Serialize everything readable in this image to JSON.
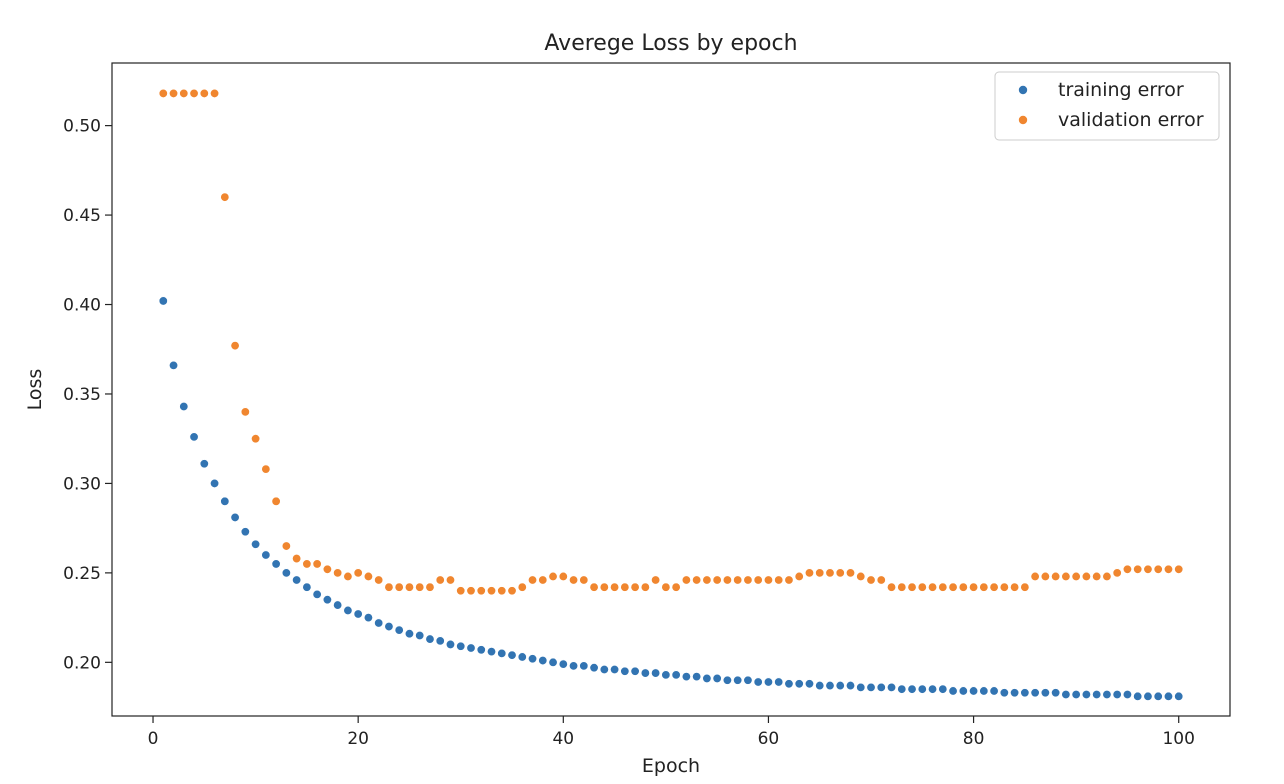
{
  "chart_data": {
    "type": "scatter",
    "title": "Averege Loss by epoch",
    "xlabel": "Epoch",
    "ylabel": "Loss",
    "xlim": [
      -4,
      105
    ],
    "ylim": [
      0.17,
      0.535
    ],
    "xticks": [
      0,
      20,
      40,
      60,
      80,
      100
    ],
    "yticks": [
      0.2,
      0.25,
      0.3,
      0.35,
      0.4,
      0.45,
      0.5
    ],
    "xtick_labels": [
      "0",
      "20",
      "40",
      "60",
      "80",
      "100"
    ],
    "ytick_labels": [
      "0.20",
      "0.25",
      "0.30",
      "0.35",
      "0.40",
      "0.45",
      "0.50"
    ],
    "grid": false,
    "legend_position": "top-right",
    "series": [
      {
        "name": "training error",
        "color": "#3274b2",
        "x": [
          1,
          2,
          3,
          4,
          5,
          6,
          7,
          8,
          9,
          10,
          11,
          12,
          13,
          14,
          15,
          16,
          17,
          18,
          19,
          20,
          21,
          22,
          23,
          24,
          25,
          26,
          27,
          28,
          29,
          30,
          31,
          32,
          33,
          34,
          35,
          36,
          37,
          38,
          39,
          40,
          41,
          42,
          43,
          44,
          45,
          46,
          47,
          48,
          49,
          50,
          51,
          52,
          53,
          54,
          55,
          56,
          57,
          58,
          59,
          60,
          61,
          62,
          63,
          64,
          65,
          66,
          67,
          68,
          69,
          70,
          71,
          72,
          73,
          74,
          75,
          76,
          77,
          78,
          79,
          80,
          81,
          82,
          83,
          84,
          85,
          86,
          87,
          88,
          89,
          90,
          91,
          92,
          93,
          94,
          95,
          96,
          97,
          98,
          99,
          100
        ],
        "y": [
          0.402,
          0.366,
          0.343,
          0.326,
          0.311,
          0.3,
          0.29,
          0.281,
          0.273,
          0.266,
          0.26,
          0.255,
          0.25,
          0.246,
          0.242,
          0.238,
          0.235,
          0.232,
          0.229,
          0.227,
          0.225,
          0.222,
          0.22,
          0.218,
          0.216,
          0.215,
          0.213,
          0.212,
          0.21,
          0.209,
          0.208,
          0.207,
          0.206,
          0.205,
          0.204,
          0.203,
          0.202,
          0.201,
          0.2,
          0.199,
          0.198,
          0.198,
          0.197,
          0.196,
          0.196,
          0.195,
          0.195,
          0.194,
          0.194,
          0.193,
          0.193,
          0.192,
          0.192,
          0.191,
          0.191,
          0.19,
          0.19,
          0.19,
          0.189,
          0.189,
          0.189,
          0.188,
          0.188,
          0.188,
          0.187,
          0.187,
          0.187,
          0.187,
          0.186,
          0.186,
          0.186,
          0.186,
          0.185,
          0.185,
          0.185,
          0.185,
          0.185,
          0.184,
          0.184,
          0.184,
          0.184,
          0.184,
          0.183,
          0.183,
          0.183,
          0.183,
          0.183,
          0.183,
          0.182,
          0.182,
          0.182,
          0.182,
          0.182,
          0.182,
          0.182,
          0.181,
          0.181,
          0.181,
          0.181,
          0.181
        ]
      },
      {
        "name": "validation error",
        "color": "#f0862f",
        "x": [
          1,
          2,
          3,
          4,
          5,
          6,
          7,
          8,
          9,
          10,
          11,
          12,
          13,
          14,
          15,
          16,
          17,
          18,
          19,
          20,
          21,
          22,
          23,
          24,
          25,
          26,
          27,
          28,
          29,
          30,
          31,
          32,
          33,
          34,
          35,
          36,
          37,
          38,
          39,
          40,
          41,
          42,
          43,
          44,
          45,
          46,
          47,
          48,
          49,
          50,
          51,
          52,
          53,
          54,
          55,
          56,
          57,
          58,
          59,
          60,
          61,
          62,
          63,
          64,
          65,
          66,
          67,
          68,
          69,
          70,
          71,
          72,
          73,
          74,
          75,
          76,
          77,
          78,
          79,
          80,
          81,
          82,
          83,
          84,
          85,
          86,
          87,
          88,
          89,
          90,
          91,
          92,
          93,
          94,
          95,
          96,
          97,
          98,
          99,
          100
        ],
        "y": [
          0.518,
          0.518,
          0.518,
          0.518,
          0.518,
          0.518,
          0.46,
          0.377,
          0.34,
          0.325,
          0.308,
          0.29,
          0.265,
          0.258,
          0.255,
          0.255,
          0.252,
          0.25,
          0.248,
          0.25,
          0.248,
          0.246,
          0.242,
          0.242,
          0.242,
          0.242,
          0.242,
          0.246,
          0.246,
          0.24,
          0.24,
          0.24,
          0.24,
          0.24,
          0.24,
          0.242,
          0.246,
          0.246,
          0.248,
          0.248,
          0.246,
          0.246,
          0.242,
          0.242,
          0.242,
          0.242,
          0.242,
          0.242,
          0.246,
          0.242,
          0.242,
          0.246,
          0.246,
          0.246,
          0.246,
          0.246,
          0.246,
          0.246,
          0.246,
          0.246,
          0.246,
          0.246,
          0.248,
          0.25,
          0.25,
          0.25,
          0.25,
          0.25,
          0.248,
          0.246,
          0.246,
          0.242,
          0.242,
          0.242,
          0.242,
          0.242,
          0.242,
          0.242,
          0.242,
          0.242,
          0.242,
          0.242,
          0.242,
          0.242,
          0.242,
          0.248,
          0.248,
          0.248,
          0.248,
          0.248,
          0.248,
          0.248,
          0.248,
          0.25,
          0.252,
          0.252,
          0.252,
          0.252,
          0.252,
          0.252
        ]
      }
    ]
  }
}
